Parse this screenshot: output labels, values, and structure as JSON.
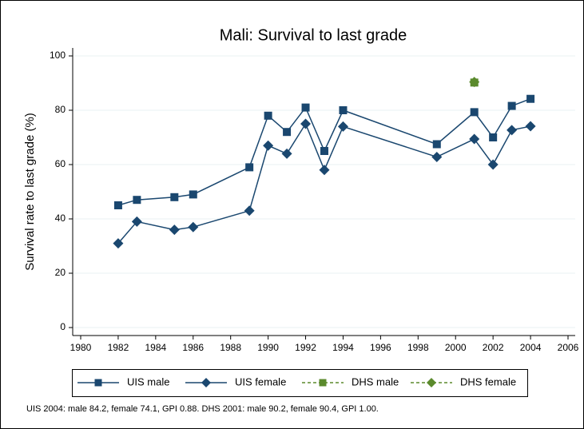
{
  "chart_data": {
    "type": "line",
    "title": "Mali: Survival to last grade",
    "y_label": "Survival rate to last grade (%)",
    "note": "UIS 2004: male 84.2, female 74.1, GPI 0.88. DHS 2001: male 90.2, female 90.4, GPI 1.00.",
    "xlim": [
      1980,
      2006
    ],
    "xticks": [
      1980,
      1982,
      1984,
      1986,
      1988,
      1990,
      1992,
      1994,
      1996,
      1998,
      2000,
      2002,
      2004,
      2006
    ],
    "ylim": [
      0,
      100
    ],
    "yticks": [
      0,
      20,
      40,
      60,
      80,
      100
    ],
    "grid": true,
    "legend": "bottom",
    "series": [
      {
        "name": "UIS male",
        "color": "#1a476f",
        "marker": "square",
        "dash": false,
        "x": [
          1982,
          1983,
          1985,
          1986,
          1989,
          1990,
          1991,
          1992,
          1993,
          1994,
          1999,
          2001,
          2002,
          2003,
          2004
        ],
        "values": [
          45,
          47,
          48,
          49,
          59,
          78,
          72,
          81,
          65,
          80,
          67.5,
          79.3,
          70,
          81.6,
          84.2
        ]
      },
      {
        "name": "UIS female",
        "color": "#1a476f",
        "marker": "diamond",
        "dash": false,
        "x": [
          1982,
          1983,
          1985,
          1986,
          1989,
          1990,
          1991,
          1992,
          1993,
          1994,
          1999,
          2001,
          2002,
          2003,
          2004
        ],
        "values": [
          31,
          39,
          36,
          37,
          43,
          67,
          64,
          75,
          58,
          74,
          62.8,
          69.4,
          60,
          72.7,
          74.1
        ]
      },
      {
        "name": "DHS male",
        "color": "#5b8a2d",
        "marker": "square",
        "dash": true,
        "x": [
          2001
        ],
        "values": [
          90.2
        ]
      },
      {
        "name": "DHS female",
        "color": "#5b8a2d",
        "marker": "diamond",
        "dash": true,
        "x": [
          2001
        ],
        "values": [
          90.4
        ]
      }
    ]
  }
}
